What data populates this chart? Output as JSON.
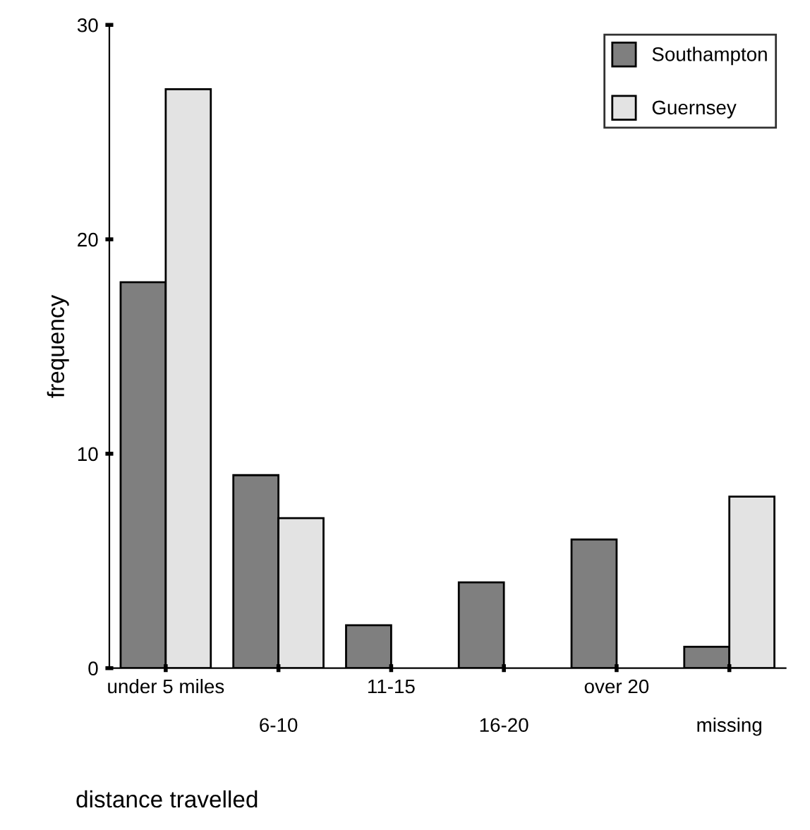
{
  "chart_data": {
    "type": "bar",
    "xlabel": "distance travelled",
    "ylabel": "frequency",
    "categories": [
      "under 5 miles",
      "6-10",
      "11-15",
      "16-20",
      "over 20",
      "missing"
    ],
    "series": [
      {
        "name": "Southampton",
        "color": "#7f7f7f",
        "values": [
          18,
          9,
          2,
          4,
          6,
          1
        ]
      },
      {
        "name": "Guernsey",
        "color": "#e3e3e3",
        "values": [
          27,
          7,
          null,
          null,
          null,
          8
        ]
      }
    ],
    "ylim": [
      0,
      30
    ],
    "yticks": [
      0,
      10,
      20,
      30
    ],
    "grid": false,
    "legend": "top right"
  }
}
